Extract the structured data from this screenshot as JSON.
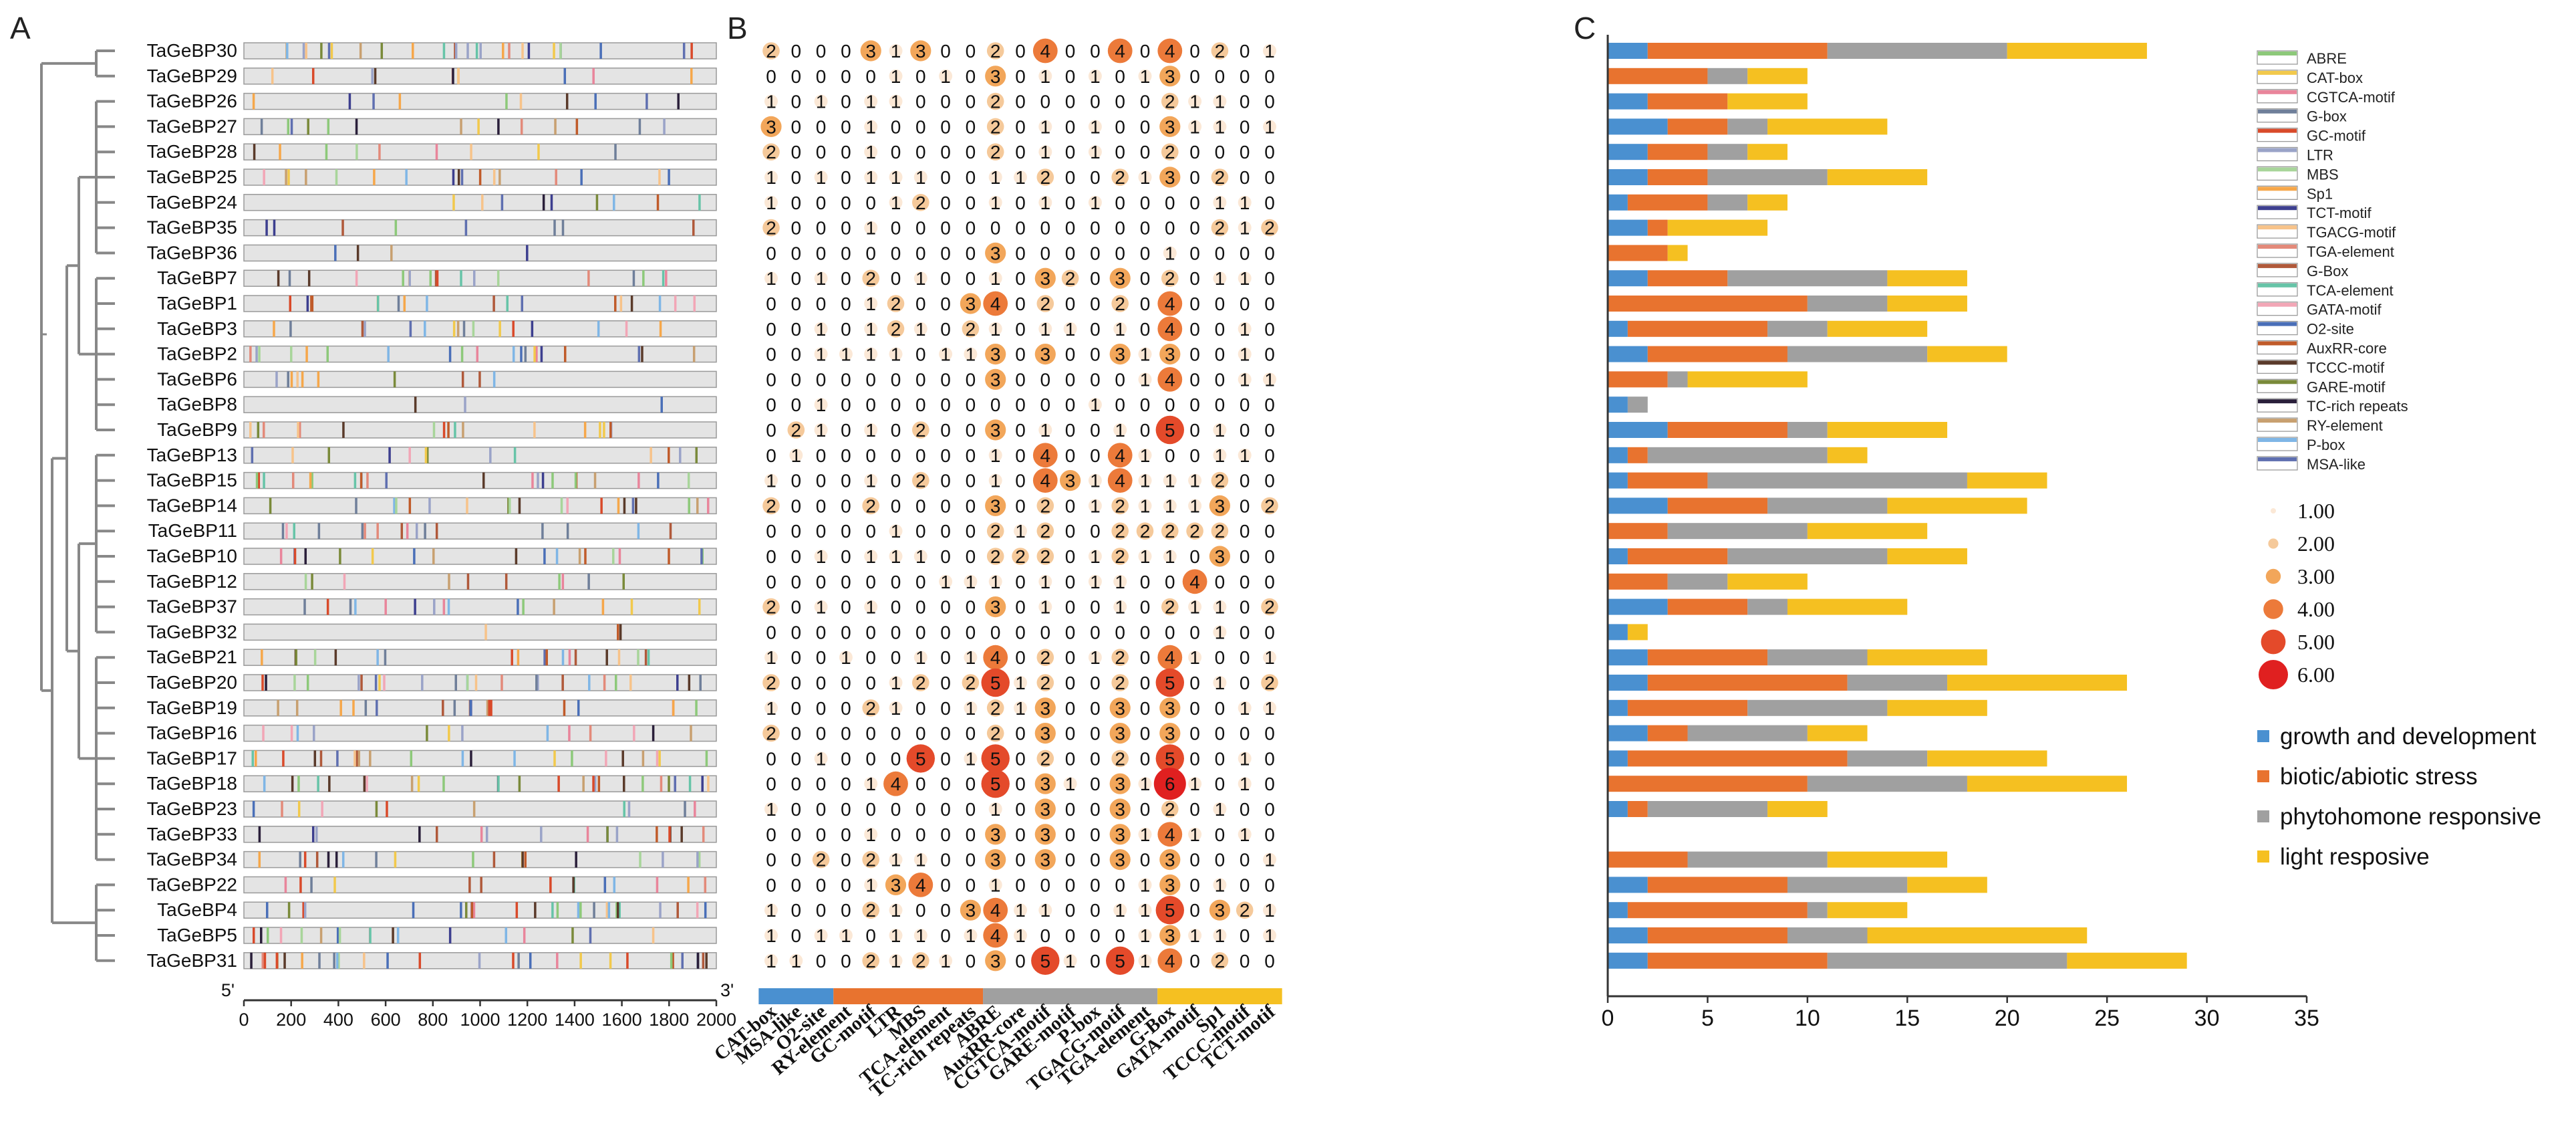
{
  "panel_labels": [
    "A",
    "B",
    "C"
  ],
  "genes": [
    "TaGeBP30",
    "TaGeBP29",
    "TaGeBP26",
    "TaGeBP27",
    "TaGeBP28",
    "TaGeBP25",
    "TaGeBP24",
    "TaGeBP35",
    "TaGeBP36",
    "TaGeBP7",
    "TaGeBP1",
    "TaGeBP3",
    "TaGeBP2",
    "TaGeBP6",
    "TaGeBP8",
    "TaGeBP9",
    "TaGeBP13",
    "TaGeBP15",
    "TaGeBP14",
    "TaGeBP11",
    "TaGeBP10",
    "TaGeBP12",
    "TaGeBP37",
    "TaGeBP32",
    "TaGeBP21",
    "TaGeBP20",
    "TaGeBP19",
    "TaGeBP16",
    "TaGeBP17",
    "TaGeBP18",
    "TaGeBP23",
    "TaGeBP33",
    "TaGeBP34",
    "TaGeBP22",
    "TaGeBP4",
    "TaGeBP5",
    "TaGeBP31"
  ],
  "panel_a": {
    "end_5": "5'",
    "end_3": "3'",
    "axis_ticks": [
      "0",
      "200",
      "400",
      "600",
      "800",
      "1000",
      "1200",
      "1400",
      "1600",
      "1800",
      "2000"
    ],
    "motif_colors": [
      "#8dc97a",
      "#f2c94c",
      "#e9859b",
      "#6f7f9a",
      "#d94a2a",
      "#9aa3c8",
      "#a8d59a",
      "#f6a74a",
      "#3d3f8f",
      "#f7c38a",
      "#e38a7a",
      "#b0593a",
      "#67c4a8",
      "#f2a6b6",
      "#4a6fb8",
      "#c05b2a",
      "#5a3a2a",
      "#7a8a3a",
      "#2a1f3a",
      "#c8a070",
      "#7fb6e6",
      "#5f6fb0"
    ]
  },
  "panel_b": {
    "motifs": [
      "CAT-box",
      "MSA-like",
      "O2-site",
      "RY-element",
      "GC-motif",
      "LTR",
      "MBS",
      "TCA-element",
      "TC-rich repeats",
      "ABRE",
      "AuxRR-core",
      "CGTCA-motif",
      "GARE-motif",
      "P-box",
      "TGACG-motif",
      "TGA-element",
      "G-Box",
      "GATA-motif",
      "Sp1",
      "TCCC-motif",
      "TCT-motif"
    ],
    "groups": [
      {
        "name": "growth and development",
        "start": 0,
        "end": 3,
        "color": "#4a90d0"
      },
      {
        "name": "biotic/abiotic stress",
        "start": 3,
        "end": 9,
        "color": "#e8732f"
      },
      {
        "name": "phytohomone responsive",
        "start": 9,
        "end": 16,
        "color": "#a0a0a0"
      },
      {
        "name": "light resposive",
        "start": 16,
        "end": 21,
        "color": "#f5c021"
      }
    ],
    "counts": [
      [
        2,
        0,
        0,
        0,
        3,
        1,
        3,
        0,
        0,
        2,
        0,
        4,
        0,
        0,
        4,
        0,
        4,
        0,
        2,
        0,
        1
      ],
      [
        0,
        0,
        0,
        0,
        0,
        1,
        0,
        1,
        0,
        3,
        0,
        1,
        0,
        1,
        0,
        1,
        3,
        0,
        0,
        0,
        0
      ],
      [
        1,
        0,
        1,
        0,
        1,
        1,
        0,
        0,
        0,
        2,
        0,
        0,
        0,
        0,
        0,
        0,
        2,
        1,
        1,
        0,
        0
      ],
      [
        3,
        0,
        0,
        0,
        1,
        0,
        0,
        0,
        0,
        2,
        0,
        1,
        0,
        1,
        0,
        0,
        3,
        1,
        1,
        0,
        1
      ],
      [
        2,
        0,
        0,
        0,
        1,
        0,
        0,
        0,
        0,
        2,
        0,
        1,
        0,
        1,
        0,
        0,
        2,
        0,
        0,
        0,
        0
      ],
      [
        1,
        0,
        1,
        0,
        1,
        1,
        1,
        0,
        0,
        1,
        1,
        2,
        0,
        0,
        2,
        1,
        3,
        0,
        2,
        0,
        0
      ],
      [
        1,
        0,
        0,
        0,
        0,
        1,
        2,
        0,
        0,
        1,
        0,
        1,
        0,
        1,
        0,
        0,
        0,
        0,
        1,
        1,
        0
      ],
      [
        2,
        0,
        0,
        0,
        1,
        0,
        0,
        0,
        0,
        0,
        0,
        0,
        0,
        0,
        0,
        0,
        0,
        0,
        2,
        1,
        2
      ],
      [
        0,
        0,
        0,
        0,
        0,
        0,
        0,
        0,
        0,
        3,
        0,
        0,
        0,
        0,
        0,
        0,
        1,
        0,
        0,
        0,
        0
      ],
      [
        1,
        0,
        1,
        0,
        2,
        0,
        1,
        0,
        0,
        1,
        0,
        3,
        2,
        0,
        3,
        0,
        2,
        0,
        1,
        1,
        0
      ],
      [
        0,
        0,
        0,
        0,
        1,
        2,
        0,
        0,
        3,
        4,
        0,
        2,
        0,
        0,
        2,
        0,
        4,
        0,
        0,
        0,
        0
      ],
      [
        0,
        0,
        1,
        0,
        1,
        2,
        1,
        0,
        2,
        1,
        0,
        1,
        1,
        0,
        1,
        0,
        4,
        0,
        0,
        1,
        0
      ],
      [
        0,
        0,
        1,
        1,
        1,
        1,
        0,
        1,
        1,
        3,
        0,
        3,
        0,
        0,
        3,
        1,
        3,
        0,
        0,
        1,
        0
      ],
      [
        0,
        0,
        0,
        0,
        0,
        0,
        0,
        0,
        0,
        3,
        0,
        0,
        0,
        0,
        0,
        1,
        4,
        0,
        0,
        1,
        1
      ],
      [
        0,
        0,
        1,
        0,
        0,
        0,
        0,
        0,
        0,
        0,
        0,
        0,
        0,
        1,
        0,
        0,
        0,
        0,
        0,
        0,
        0
      ],
      [
        0,
        2,
        1,
        0,
        1,
        0,
        2,
        0,
        0,
        3,
        0,
        1,
        0,
        0,
        1,
        0,
        5,
        0,
        1,
        0,
        0
      ],
      [
        0,
        1,
        0,
        0,
        0,
        0,
        0,
        0,
        0,
        1,
        0,
        4,
        0,
        0,
        4,
        1,
        0,
        0,
        1,
        1,
        0
      ],
      [
        1,
        0,
        0,
        0,
        1,
        0,
        2,
        0,
        0,
        1,
        0,
        4,
        3,
        1,
        4,
        1,
        1,
        1,
        2,
        0,
        0
      ],
      [
        2,
        0,
        0,
        0,
        2,
        0,
        0,
        0,
        0,
        3,
        0,
        2,
        0,
        1,
        2,
        1,
        1,
        1,
        3,
        0,
        2
      ],
      [
        0,
        0,
        0,
        0,
        0,
        1,
        0,
        0,
        0,
        2,
        1,
        2,
        0,
        0,
        2,
        2,
        2,
        2,
        2,
        0,
        0
      ],
      [
        0,
        0,
        1,
        0,
        1,
        1,
        1,
        0,
        0,
        2,
        2,
        2,
        0,
        1,
        2,
        1,
        1,
        0,
        3,
        0,
        0
      ],
      [
        0,
        0,
        0,
        0,
        0,
        0,
        0,
        1,
        1,
        1,
        0,
        1,
        0,
        1,
        1,
        0,
        0,
        4,
        0,
        0,
        0
      ],
      [
        2,
        0,
        1,
        0,
        1,
        0,
        0,
        0,
        0,
        3,
        0,
        1,
        0,
        0,
        1,
        0,
        2,
        1,
        1,
        0,
        2
      ],
      [
        0,
        0,
        0,
        0,
        0,
        0,
        0,
        0,
        0,
        0,
        0,
        0,
        0,
        0,
        0,
        0,
        0,
        0,
        1,
        0,
        0
      ],
      [
        1,
        0,
        0,
        1,
        0,
        0,
        1,
        0,
        1,
        4,
        0,
        2,
        0,
        1,
        2,
        0,
        4,
        1,
        0,
        0,
        1
      ],
      [
        2,
        0,
        0,
        0,
        0,
        1,
        2,
        0,
        2,
        5,
        1,
        2,
        0,
        0,
        2,
        0,
        5,
        0,
        1,
        0,
        2
      ],
      [
        1,
        0,
        0,
        0,
        2,
        1,
        0,
        0,
        1,
        2,
        1,
        3,
        0,
        0,
        3,
        0,
        3,
        0,
        0,
        1,
        1
      ],
      [
        2,
        0,
        0,
        0,
        0,
        0,
        0,
        0,
        0,
        2,
        0,
        3,
        0,
        0,
        3,
        0,
        3,
        0,
        0,
        0,
        0
      ],
      [
        0,
        0,
        1,
        0,
        0,
        0,
        5,
        0,
        1,
        5,
        0,
        2,
        0,
        0,
        2,
        0,
        5,
        0,
        0,
        1,
        0
      ],
      [
        0,
        0,
        0,
        0,
        1,
        4,
        0,
        0,
        0,
        5,
        0,
        3,
        1,
        0,
        3,
        1,
        6,
        1,
        0,
        1,
        0
      ],
      [
        1,
        0,
        0,
        0,
        0,
        0,
        0,
        0,
        0,
        1,
        0,
        3,
        0,
        0,
        3,
        0,
        2,
        0,
        1,
        0,
        0
      ],
      [
        0,
        0,
        0,
        0,
        1,
        0,
        0,
        0,
        0,
        3,
        0,
        3,
        0,
        0,
        3,
        1,
        4,
        1,
        0,
        1,
        0
      ],
      [
        0,
        0,
        2,
        0,
        2,
        1,
        1,
        0,
        0,
        3,
        0,
        3,
        0,
        0,
        3,
        0,
        3,
        0,
        0,
        0,
        1
      ],
      [
        0,
        0,
        0,
        0,
        1,
        3,
        4,
        0,
        0,
        1,
        0,
        0,
        0,
        0,
        0,
        1,
        3,
        0,
        1,
        0,
        0
      ],
      [
        1,
        0,
        0,
        0,
        2,
        1,
        0,
        0,
        3,
        4,
        1,
        1,
        0,
        0,
        1,
        1,
        5,
        0,
        3,
        2,
        1
      ],
      [
        1,
        0,
        1,
        1,
        0,
        1,
        1,
        0,
        1,
        4,
        1,
        0,
        0,
        0,
        0,
        1,
        3,
        1,
        1,
        0,
        1
      ],
      [
        1,
        1,
        0,
        0,
        2,
        1,
        2,
        1,
        0,
        3,
        0,
        5,
        1,
        0,
        5,
        1,
        4,
        0,
        2,
        0,
        0
      ]
    ],
    "size_legend": [
      "1.00",
      "2.00",
      "3.00",
      "4.00",
      "5.00",
      "6.00"
    ],
    "size_legend_colors": [
      "#fbe8d6",
      "#f5c99a",
      "#f2a65a",
      "#ec7a3a",
      "#e44a2a",
      "#e02020"
    ]
  },
  "chart_data": {
    "type": "bar",
    "orientation": "horizontal",
    "stacked": true,
    "categories": [
      "TaGeBP30",
      "TaGeBP29",
      "TaGeBP26",
      "TaGeBP27",
      "TaGeBP28",
      "TaGeBP25",
      "TaGeBP24",
      "TaGeBP35",
      "TaGeBP36",
      "TaGeBP7",
      "TaGeBP1",
      "TaGeBP3",
      "TaGeBP2",
      "TaGeBP6",
      "TaGeBP8",
      "TaGeBP9",
      "TaGeBP13",
      "TaGeBP15",
      "TaGeBP14",
      "TaGeBP11",
      "TaGeBP10",
      "TaGeBP12",
      "TaGeBP37",
      "TaGeBP32",
      "TaGeBP21",
      "TaGeBP20",
      "TaGeBP19",
      "TaGeBP16",
      "TaGeBP17",
      "TaGeBP18",
      "TaGeBP23",
      "TaGeBP33",
      "TaGeBP34",
      "TaGeBP22",
      "TaGeBP4",
      "TaGeBP5",
      "TaGeBP31"
    ],
    "series": [
      {
        "name": "growth and development",
        "color": "#4a90d0",
        "values": [
          2,
          0,
          2,
          3,
          2,
          2,
          1,
          2,
          0,
          2,
          0,
          1,
          2,
          0,
          1,
          3,
          1,
          1,
          3,
          0,
          1,
          0,
          3,
          1,
          2,
          2,
          1,
          2,
          1,
          0,
          1,
          0,
          0,
          2,
          1,
          2,
          2
        ]
      },
      {
        "name": "biotic/abiotic stress",
        "color": "#e8732f",
        "values": [
          9,
          5,
          4,
          3,
          3,
          3,
          4,
          1,
          3,
          4,
          10,
          7,
          7,
          3,
          0,
          6,
          1,
          4,
          5,
          3,
          5,
          3,
          4,
          0,
          6,
          10,
          6,
          2,
          11,
          10,
          1,
          0,
          4,
          7,
          9,
          7,
          9
        ]
      },
      {
        "name": "phytohomone responsive",
        "color": "#a0a0a0",
        "values": [
          9,
          2,
          0,
          2,
          2,
          6,
          2,
          0,
          0,
          8,
          4,
          3,
          7,
          1,
          1,
          2,
          9,
          13,
          6,
          7,
          8,
          3,
          2,
          0,
          5,
          5,
          7,
          6,
          4,
          8,
          6,
          0,
          7,
          6,
          1,
          4,
          12
        ]
      },
      {
        "name": "light resposive",
        "color": "#f5c021",
        "values": [
          7,
          3,
          4,
          6,
          2,
          5,
          2,
          5,
          1,
          4,
          4,
          5,
          4,
          6,
          0,
          6,
          2,
          4,
          7,
          6,
          4,
          4,
          6,
          1,
          6,
          9,
          5,
          3,
          6,
          8,
          3,
          0,
          6,
          4,
          4,
          11,
          6
        ]
      }
    ],
    "xlim": [
      0,
      35
    ],
    "x_ticks": [
      "0",
      "5",
      "10",
      "15",
      "20",
      "25",
      "30",
      "35"
    ],
    "legend": [
      "growth and development",
      "biotic/abiotic stress",
      "phytohomone responsive",
      "light resposive"
    ]
  }
}
